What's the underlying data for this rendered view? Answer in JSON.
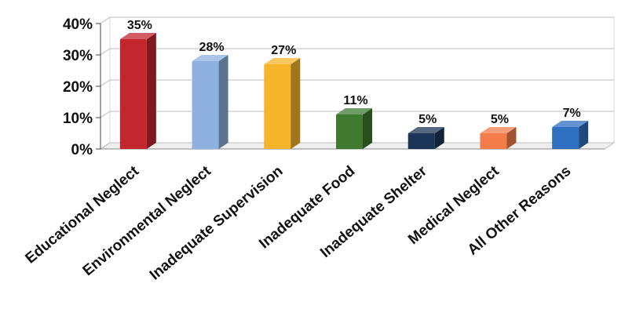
{
  "chart_data": {
    "type": "bar",
    "categories": [
      "Educational Neglect",
      "Environmental Neglect",
      "Inadequate Supervision",
      "Inadequate Food",
      "Inadequate Shelter",
      "Medical Neglect",
      "All Other Reasons"
    ],
    "values": [
      35,
      28,
      27,
      11,
      5,
      5,
      7
    ],
    "value_labels": [
      "35%",
      "28%",
      "27%",
      "11%",
      "5%",
      "5%",
      "7%"
    ],
    "y_ticks": [
      "0%",
      "10%",
      "20%",
      "30%",
      "40%"
    ],
    "ylim": [
      0,
      40
    ],
    "grid": true,
    "legend": "none",
    "title": "",
    "xlabel": "",
    "ylabel": "",
    "colors": [
      "#c4262e",
      "#8fb1e0",
      "#f6b42a",
      "#3f7a30",
      "#1c3557",
      "#f47c4a",
      "#2f6fc1"
    ]
  }
}
